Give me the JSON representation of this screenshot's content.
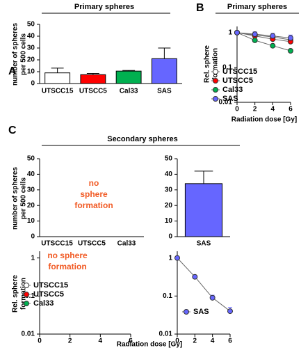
{
  "section": {
    "panel": "C",
    "title": "Secondary spheres",
    "xlabel": "Radiation dose [Gy]"
  },
  "chart_data": [
    {
      "type": "bar",
      "panel": "A",
      "title": "Primary spheres",
      "ylabel": [
        "number of spheres",
        "per 500 cells"
      ],
      "categories": [
        "UTSCC15",
        "UTSCC5",
        "Cal33",
        "SAS"
      ],
      "values": [
        9,
        7.5,
        10.5,
        21
      ],
      "errors": [
        4,
        1,
        0.5,
        9
      ],
      "colors": [
        "#ffffff",
        "#ff0000",
        "#00b050",
        "#6666ff"
      ],
      "ylim": [
        0,
        50
      ],
      "yticks": [
        0,
        10,
        20,
        30,
        40,
        50
      ]
    },
    {
      "type": "line",
      "panel": "B",
      "title": "Primary spheres",
      "ylabel": [
        "Rel. sphere",
        "formation"
      ],
      "xlabel": "Radiation dose [Gy]",
      "x": [
        0,
        2,
        4,
        6
      ],
      "xlim": [
        0,
        6
      ],
      "xticks": [
        0,
        2,
        4,
        6
      ],
      "ylim": [
        0.01,
        1.5
      ],
      "yticks": [
        0.01,
        0.1,
        1
      ],
      "yscale": "log",
      "legend": "lower left",
      "series": [
        {
          "name": "UTSCC15",
          "color": "#ffffff",
          "values": [
            1,
            0.85,
            0.75,
            0.62
          ],
          "errors": [
            0.05,
            0.08,
            0.08,
            0.08
          ]
        },
        {
          "name": "UTSCC5",
          "color": "#ff0000",
          "values": [
            1,
            0.8,
            0.65,
            0.55
          ],
          "errors": [
            0.05,
            0.06,
            0.06,
            0.05
          ]
        },
        {
          "name": "Cal33",
          "color": "#00b050",
          "values": [
            1,
            0.6,
            0.42,
            0.3
          ],
          "errors": [
            0.05,
            0.04,
            0.03,
            0.02
          ]
        },
        {
          "name": "SAS",
          "color": "#6666ff",
          "values": [
            1,
            0.9,
            0.8,
            0.7
          ],
          "errors": [
            0.05,
            0.15,
            0.15,
            0.15
          ]
        }
      ]
    },
    {
      "type": "bar",
      "ylabel": [
        "number of spheres",
        "per 500 cells"
      ],
      "categories": [
        "UTSCC15",
        "UTSCC5",
        "Cal33"
      ],
      "values": [
        null,
        null,
        null
      ],
      "ylim": [
        0,
        50
      ],
      "yticks": [
        0,
        10,
        20,
        30,
        40,
        50
      ],
      "annotation": [
        "no",
        "sphere",
        "formation"
      ]
    },
    {
      "type": "bar",
      "categories": [
        "SAS"
      ],
      "values": [
        34
      ],
      "errors": [
        8
      ],
      "colors": [
        "#6666ff"
      ],
      "ylim": [
        0,
        50
      ],
      "yticks": [
        0,
        10,
        20,
        30,
        40,
        50
      ]
    },
    {
      "type": "line",
      "ylabel": [
        "Rel. sphere",
        "formation"
      ],
      "x": [
        0,
        2,
        4,
        6
      ],
      "xlim": [
        0,
        6
      ],
      "xticks": [
        0,
        2,
        4,
        6
      ],
      "ylim": [
        0.01,
        1.5
      ],
      "yticks": [
        0.01,
        0.1,
        1
      ],
      "yscale": "log",
      "legend": "lower left",
      "annotation": [
        "no sphere",
        "formation"
      ],
      "series": [
        {
          "name": "UTSCC15",
          "color": "#ffffff",
          "values": [
            null,
            null,
            null,
            null
          ]
        },
        {
          "name": "UTSCC5",
          "color": "#ff0000",
          "values": [
            null,
            null,
            null,
            null
          ]
        },
        {
          "name": "Cal33",
          "color": "#00b050",
          "values": [
            null,
            null,
            null,
            null
          ]
        }
      ]
    },
    {
      "type": "line",
      "x": [
        0,
        2,
        4,
        6
      ],
      "xlim": [
        0,
        6
      ],
      "xticks": [
        0,
        2,
        4,
        6
      ],
      "ylim": [
        0.01,
        1.5
      ],
      "yticks": [
        0.01,
        0.1,
        1
      ],
      "yscale": "log",
      "legend": "lower right",
      "series": [
        {
          "name": "SAS",
          "color": "#6666ff",
          "values": [
            1,
            0.32,
            0.09,
            0.04
          ],
          "errors": [
            0.05,
            0.03,
            0.015,
            0.01
          ]
        }
      ]
    }
  ]
}
